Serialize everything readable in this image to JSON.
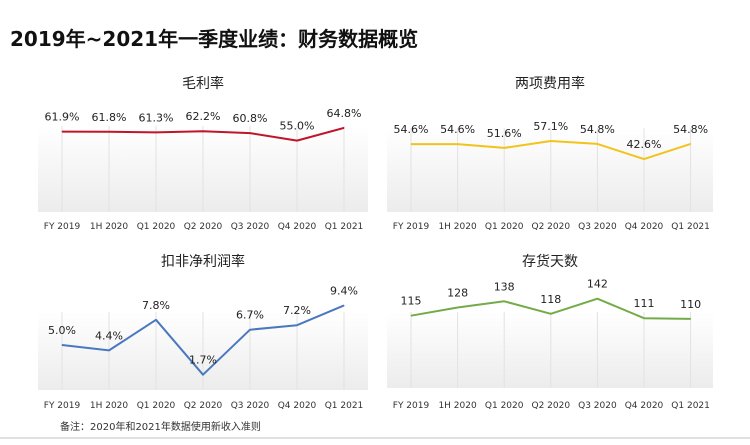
{
  "page_title": "2019年~2021年一季度业绩：财务数据概览",
  "footnote": "备注：2020年和2021年数据使用新收入准则",
  "chart_data": [
    {
      "type": "line",
      "title": "毛利率",
      "categories": [
        "FY 2019",
        "1H 2020",
        "Q1 2020",
        "Q2 2020",
        "Q3 2020",
        "Q4 2020",
        "Q1 2021"
      ],
      "values": [
        61.9,
        61.8,
        61.3,
        62.2,
        60.8,
        55.0,
        64.8
      ],
      "labels": [
        "61.9%",
        "61.8%",
        "61.3%",
        "62.2%",
        "60.8%",
        "55.0%",
        "64.8%"
      ],
      "ylim": [
        0,
        67
      ],
      "color": "#c0142a"
    },
    {
      "type": "line",
      "title": "两项费用率",
      "categories": [
        "FY 2019",
        "1H 2020",
        "Q1 2020",
        "Q2 2020",
        "Q3 2020",
        "Q4 2020",
        "Q1 2021"
      ],
      "values": [
        54.6,
        54.6,
        51.6,
        57.1,
        54.8,
        42.6,
        54.8
      ],
      "labels": [
        "54.6%",
        "54.6%",
        "51.6%",
        "57.1%",
        "54.8%",
        "42.6%",
        "54.8%"
      ],
      "ylim": [
        0,
        70
      ],
      "color": "#f2c31b"
    },
    {
      "type": "line",
      "title": "扣非净利润率",
      "categories": [
        "FY 2019",
        "1H 2020",
        "Q1 2020",
        "Q2 2020",
        "Q3 2020",
        "Q4 2020",
        "Q1 2021"
      ],
      "values": [
        5.0,
        4.4,
        7.8,
        1.7,
        6.7,
        7.2,
        9.4
      ],
      "labels": [
        "5.0%",
        "4.4%",
        "7.8%",
        "1.7%",
        "6.7%",
        "7.2%",
        "9.4%"
      ],
      "ylim": [
        0,
        10
      ],
      "color": "#4a78bf"
    },
    {
      "type": "line",
      "title": "存货天数",
      "categories": [
        "FY 2019",
        "1H 2020",
        "Q1 2020",
        "Q2 2020",
        "Q3 2020",
        "Q4 2020",
        "Q1 2021"
      ],
      "values": [
        115,
        128,
        138,
        118,
        142,
        111,
        110
      ],
      "labels": [
        "115",
        "128",
        "138",
        "118",
        "142",
        "111",
        "110"
      ],
      "ylim": [
        0,
        140
      ],
      "color": "#72ac48"
    }
  ]
}
